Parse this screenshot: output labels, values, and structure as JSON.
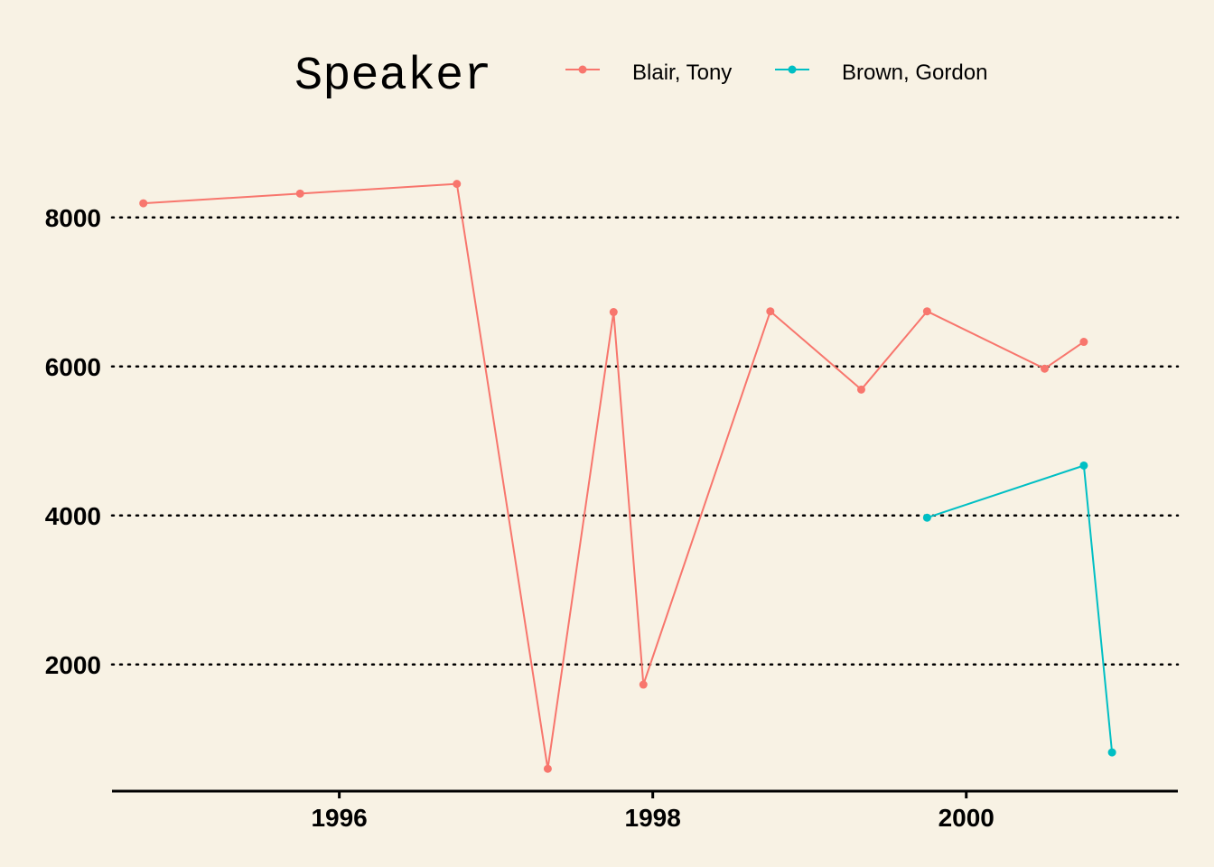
{
  "chart_data": {
    "type": "line",
    "legend_title": "Speaker",
    "legend_position": "top",
    "xlabel": "",
    "ylabel": "",
    "xlim": [
      1994.55,
      2001.35
    ],
    "ylim": [
      300,
      9100
    ],
    "x_ticks": [
      1996,
      1998,
      2000
    ],
    "x_tick_labels": [
      "1996",
      "1998",
      "2000"
    ],
    "y_ticks": [
      2000,
      4000,
      6000,
      8000
    ],
    "y_tick_labels": [
      "2000",
      "4000",
      "6000",
      "8000"
    ],
    "grid": {
      "horizontal": true,
      "vertical": false,
      "style": "dotted"
    },
    "series": [
      {
        "name": "Blair, Tony",
        "color": "#f8766d",
        "points": [
          {
            "x": 1994.75,
            "y": 8190
          },
          {
            "x": 1995.75,
            "y": 8320
          },
          {
            "x": 1996.75,
            "y": 8450
          },
          {
            "x": 1997.33,
            "y": 600
          },
          {
            "x": 1997.75,
            "y": 6730
          },
          {
            "x": 1997.94,
            "y": 1730
          },
          {
            "x": 1998.75,
            "y": 6740
          },
          {
            "x": 1999.33,
            "y": 5690
          },
          {
            "x": 1999.75,
            "y": 6740
          },
          {
            "x": 2000.5,
            "y": 5970
          },
          {
            "x": 2000.75,
            "y": 6330
          }
        ]
      },
      {
        "name": "Brown, Gordon",
        "color": "#00bfc4",
        "points": [
          {
            "x": 1999.75,
            "y": 3970
          },
          {
            "x": 2000.75,
            "y": 4670
          },
          {
            "x": 2000.93,
            "y": 820
          }
        ]
      }
    ]
  }
}
